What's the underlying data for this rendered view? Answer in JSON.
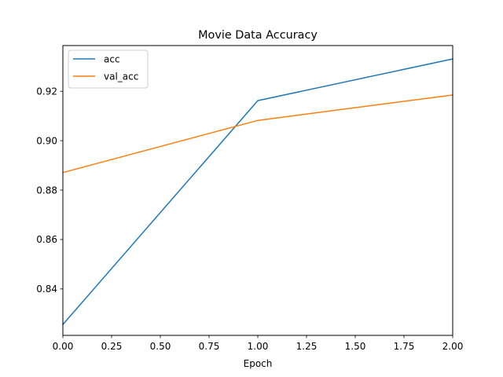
{
  "chart_data": {
    "type": "line",
    "title": "Movie Data Accuracy",
    "xlabel": "Epoch",
    "ylabel": "",
    "xlim": [
      0,
      2
    ],
    "ylim": [
      0.8212,
      0.9385
    ],
    "x_ticks": [
      "0.00",
      "0.25",
      "0.50",
      "0.75",
      "1.00",
      "1.25",
      "1.50",
      "1.75",
      "2.00"
    ],
    "x_tick_values": [
      0,
      0.25,
      0.5,
      0.75,
      1.0,
      1.25,
      1.5,
      1.75,
      2.0
    ],
    "y_ticks": [
      "0.84",
      "0.86",
      "0.88",
      "0.90",
      "0.92"
    ],
    "y_tick_values": [
      0.84,
      0.86,
      0.88,
      0.9,
      0.92
    ],
    "grid": false,
    "legend_position": "top-left",
    "series": [
      {
        "name": "acc",
        "color": "#1f77b4",
        "x": [
          0,
          1,
          2
        ],
        "y": [
          0.8256,
          0.9162,
          0.9331
        ]
      },
      {
        "name": "val_acc",
        "color": "#ff7f0e",
        "x": [
          0,
          1,
          2
        ],
        "y": [
          0.8871,
          0.9082,
          0.9185
        ]
      }
    ]
  }
}
